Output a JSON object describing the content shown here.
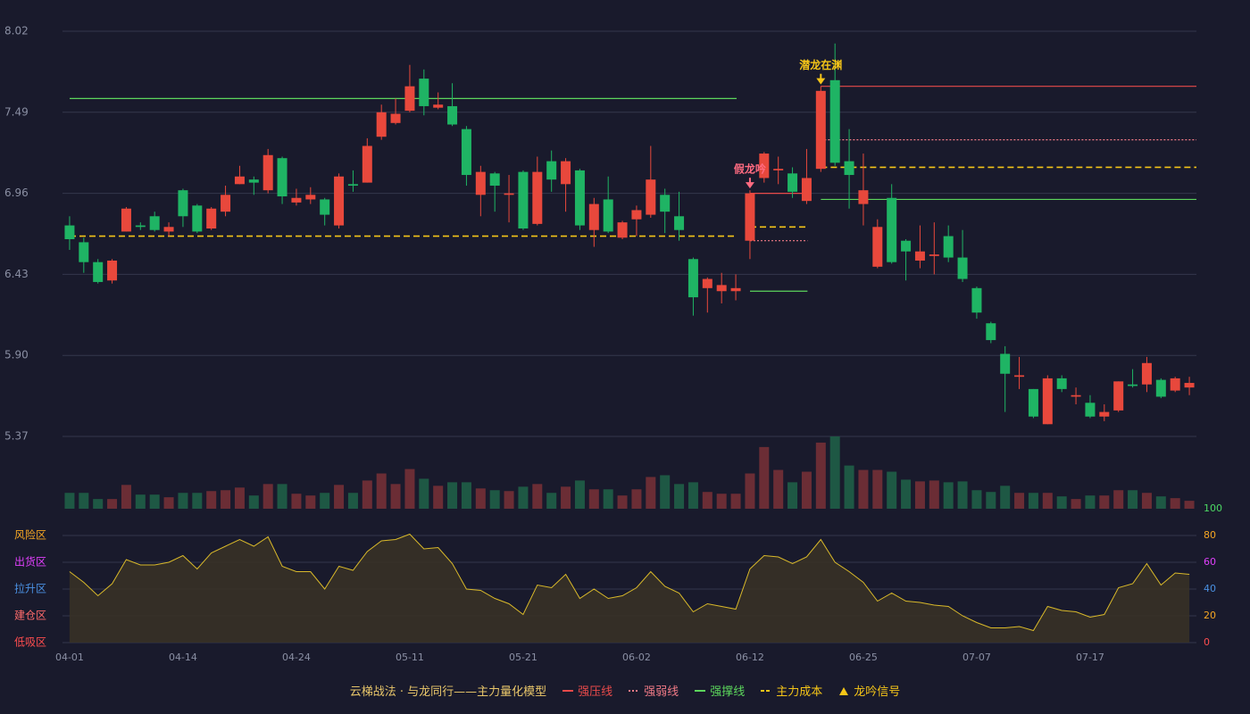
{
  "chart_data": [
    {
      "type": "candlestick",
      "categories": [
        "04-01",
        null,
        null,
        null,
        null,
        null,
        null,
        null,
        "04-14",
        null,
        null,
        null,
        null,
        null,
        null,
        null,
        "04-24",
        null,
        null,
        null,
        null,
        null,
        null,
        null,
        "05-11",
        null,
        null,
        null,
        null,
        null,
        null,
        null,
        "05-21",
        null,
        null,
        null,
        null,
        null,
        null,
        null,
        "06-02",
        null,
        null,
        null,
        null,
        null,
        null,
        null,
        "06-12",
        null,
        null,
        null,
        null,
        null,
        null,
        null,
        "06-25",
        null,
        null,
        null,
        null,
        null,
        null,
        null,
        "07-07",
        null,
        null,
        null,
        null,
        null,
        null,
        null,
        "07-17",
        null,
        null,
        null,
        null,
        null,
        null,
        null
      ],
      "open": [
        6.75,
        6.64,
        6.51,
        6.39,
        6.71,
        6.75,
        6.81,
        6.71,
        6.98,
        6.88,
        6.73,
        6.84,
        7.02,
        7.05,
        6.98,
        7.19,
        6.9,
        6.92,
        6.92,
        6.75,
        7.02,
        7.03,
        7.33,
        7.42,
        7.5,
        7.71,
        7.52,
        7.53,
        7.38,
        6.95,
        7.09,
        6.95,
        7.1,
        6.76,
        7.17,
        7.02,
        7.11,
        6.72,
        6.92,
        6.67,
        6.79,
        6.82,
        6.95,
        6.81,
        6.53,
        6.34,
        6.32,
        6.32,
        6.65,
        7.06,
        7.11,
        7.09,
        6.91,
        7.12,
        7.7,
        7.17,
        6.89,
        6.48,
        6.93,
        6.65,
        6.52,
        6.55,
        6.68,
        6.54,
        6.34,
        6.11,
        5.91,
        5.76,
        5.68,
        5.45,
        5.75,
        5.63,
        5.59,
        5.5,
        5.54,
        5.71,
        5.71,
        5.74,
        5.67,
        5.69
      ],
      "high": [
        6.81,
        6.67,
        6.53,
        6.53,
        6.87,
        6.77,
        6.84,
        6.77,
        6.99,
        6.89,
        6.87,
        7.01,
        7.14,
        7.07,
        7.25,
        7.2,
        6.99,
        7.0,
        6.93,
        7.09,
        7.11,
        7.32,
        7.54,
        7.58,
        7.8,
        7.77,
        7.62,
        7.68,
        7.4,
        7.14,
        7.1,
        7.08,
        7.11,
        7.2,
        7.24,
        7.19,
        7.12,
        6.93,
        7.07,
        6.78,
        6.88,
        7.27,
        6.99,
        6.97,
        6.54,
        6.41,
        6.44,
        6.43,
        6.98,
        7.23,
        7.2,
        7.13,
        7.25,
        7.66,
        7.94,
        7.38,
        7.22,
        6.79,
        7.02,
        6.66,
        6.75,
        6.77,
        6.75,
        6.72,
        6.35,
        6.12,
        5.96,
        5.89,
        5.68,
        5.77,
        5.77,
        5.69,
        5.64,
        5.58,
        5.73,
        5.81,
        5.89,
        5.75,
        5.76,
        5.76
      ],
      "low": [
        6.59,
        6.44,
        6.37,
        6.37,
        6.71,
        6.72,
        6.71,
        6.68,
        6.74,
        6.7,
        6.72,
        6.81,
        7.02,
        6.95,
        6.96,
        6.89,
        6.88,
        6.89,
        6.75,
        6.73,
        6.97,
        7.03,
        7.31,
        7.41,
        7.49,
        7.47,
        7.51,
        7.4,
        7.01,
        6.81,
        6.84,
        6.77,
        6.72,
        6.75,
        6.97,
        6.84,
        6.72,
        6.61,
        6.7,
        6.66,
        6.68,
        6.8,
        6.7,
        6.65,
        6.16,
        6.18,
        6.24,
        6.26,
        6.53,
        7.03,
        7.02,
        6.93,
        6.89,
        7.1,
        7.14,
        6.86,
        6.75,
        6.47,
        6.5,
        6.39,
        6.47,
        6.43,
        6.51,
        6.38,
        6.14,
        5.98,
        5.53,
        5.68,
        5.49,
        5.45,
        5.66,
        5.58,
        5.49,
        5.47,
        5.53,
        5.69,
        5.66,
        5.62,
        5.66,
        5.64
      ],
      "close": [
        6.66,
        6.51,
        6.38,
        6.52,
        6.86,
        6.74,
        6.72,
        6.74,
        6.81,
        6.71,
        6.86,
        6.95,
        7.07,
        7.03,
        7.21,
        6.94,
        6.93,
        6.95,
        6.82,
        7.07,
        7.01,
        7.27,
        7.49,
        7.48,
        7.66,
        7.53,
        7.54,
        7.41,
        7.08,
        7.1,
        7.01,
        6.96,
        6.73,
        7.1,
        7.05,
        7.17,
        6.75,
        6.89,
        6.71,
        6.77,
        6.85,
        7.05,
        6.84,
        6.72,
        6.28,
        6.4,
        6.36,
        6.34,
        6.96,
        7.22,
        7.12,
        6.97,
        7.06,
        7.63,
        7.16,
        7.08,
        6.98,
        6.74,
        6.51,
        6.58,
        6.58,
        6.56,
        6.54,
        6.4,
        6.18,
        6.0,
        5.78,
        5.77,
        5.5,
        5.75,
        5.68,
        5.64,
        5.5,
        5.53,
        5.73,
        5.7,
        5.85,
        5.63,
        5.75,
        5.72
      ],
      "up_color": "#e8483c",
      "down_color": "#1fb464",
      "ylim": [
        5.37,
        8.02
      ],
      "yticks": [
        8.02,
        7.49,
        6.96,
        6.43,
        {
          "value": 5.9,
          "label": "5.90"
        },
        5.37
      ],
      "grid": true,
      "series": [
        {
          "name": "强压线",
          "color": "#e84a4a",
          "style": "solid",
          "values": [
            null,
            null,
            null,
            null,
            null,
            null,
            null,
            null,
            null,
            null,
            null,
            null,
            null,
            null,
            null,
            null,
            null,
            null,
            null,
            null,
            null,
            null,
            null,
            null,
            null,
            null,
            null,
            null,
            null,
            null,
            null,
            null,
            null,
            null,
            null,
            null,
            null,
            null,
            null,
            null,
            null,
            null,
            null,
            null,
            null,
            null,
            null,
            null,
            6.96,
            6.96,
            6.96,
            6.96,
            6.96,
            7.66,
            7.66,
            7.66,
            7.66,
            7.66,
            7.66,
            7.66,
            7.66,
            7.66,
            7.66,
            7.66,
            7.66,
            7.66,
            7.66,
            7.66,
            7.66,
            7.66,
            7.66,
            7.66,
            7.66,
            7.66,
            7.66,
            7.66,
            7.66,
            7.66,
            7.66,
            7.66
          ]
        },
        {
          "name": "强弱线",
          "color": "#f07a86",
          "style": "dotted",
          "values": [
            null,
            null,
            null,
            null,
            null,
            null,
            null,
            null,
            null,
            null,
            null,
            null,
            null,
            null,
            null,
            null,
            null,
            null,
            null,
            null,
            null,
            null,
            null,
            null,
            null,
            null,
            null,
            null,
            null,
            null,
            null,
            null,
            null,
            null,
            null,
            null,
            null,
            null,
            null,
            null,
            null,
            null,
            null,
            null,
            null,
            null,
            null,
            null,
            6.65,
            6.65,
            6.65,
            6.65,
            6.65,
            7.31,
            7.31,
            7.31,
            7.31,
            7.31,
            7.31,
            7.31,
            7.31,
            7.31,
            7.31,
            7.31,
            7.31,
            7.31,
            7.31,
            7.31,
            7.31,
            7.31,
            7.31,
            7.31,
            7.31,
            7.31,
            7.31,
            7.31,
            7.31,
            7.31,
            7.31,
            7.31
          ]
        },
        {
          "name": "强撑线",
          "color": "#5cd65c",
          "style": "solid",
          "values": [
            7.58,
            7.58,
            7.58,
            7.58,
            7.58,
            7.58,
            7.58,
            7.58,
            7.58,
            7.58,
            7.58,
            7.58,
            7.58,
            7.58,
            7.58,
            7.58,
            7.58,
            7.58,
            7.58,
            7.58,
            7.58,
            7.58,
            7.58,
            7.58,
            7.58,
            7.58,
            7.58,
            7.58,
            7.58,
            7.58,
            7.58,
            7.58,
            7.58,
            7.58,
            7.58,
            7.58,
            7.58,
            7.58,
            7.58,
            7.58,
            7.58,
            7.58,
            7.58,
            7.58,
            7.58,
            7.58,
            7.58,
            7.58,
            6.32,
            6.32,
            6.32,
            6.32,
            6.32,
            6.92,
            6.92,
            6.92,
            6.92,
            6.92,
            6.92,
            6.92,
            6.92,
            6.92,
            6.92,
            6.92,
            6.92,
            6.92,
            6.92,
            6.92,
            6.92,
            6.92,
            6.92,
            6.92,
            6.92,
            6.92,
            6.92,
            6.92,
            6.92,
            6.92,
            6.92,
            6.92
          ]
        },
        {
          "name": "主力成本",
          "color": "#f5c518",
          "style": "dashed",
          "values": [
            6.68,
            6.68,
            6.68,
            6.68,
            6.68,
            6.68,
            6.68,
            6.68,
            6.68,
            6.68,
            6.68,
            6.68,
            6.68,
            6.68,
            6.68,
            6.68,
            6.68,
            6.68,
            6.68,
            6.68,
            6.68,
            6.68,
            6.68,
            6.68,
            6.68,
            6.68,
            6.68,
            6.68,
            6.68,
            6.68,
            6.68,
            6.68,
            6.68,
            6.68,
            6.68,
            6.68,
            6.68,
            6.68,
            6.68,
            6.68,
            6.68,
            6.68,
            6.68,
            6.68,
            6.68,
            6.68,
            6.68,
            6.68,
            6.74,
            6.74,
            6.74,
            6.74,
            6.74,
            7.13,
            7.13,
            7.13,
            7.13,
            7.13,
            7.13,
            7.13,
            7.13,
            7.13,
            7.13,
            7.13,
            7.13,
            7.13,
            7.13,
            7.13,
            7.13,
            7.13,
            7.13,
            7.13,
            7.13,
            7.13,
            7.13,
            7.13,
            7.13,
            7.13,
            7.13,
            7.13
          ]
        }
      ],
      "annotations": [
        {
          "text": "假龙吟",
          "index": 48,
          "color": "#ff6b81"
        },
        {
          "text": "潜龙在渊",
          "index": 53,
          "color": "#f5c518"
        }
      ],
      "legend_title": "云梯战法 · 与龙同行——主力量化模型",
      "signal_name": "龙吟信号",
      "signal_color": "#f5c518"
    },
    {
      "type": "volume",
      "values": [
        18,
        18,
        11,
        11,
        27,
        16,
        16,
        13,
        18,
        18,
        20,
        21,
        24,
        15,
        28,
        28,
        17,
        15,
        18,
        27,
        18,
        32,
        40,
        28,
        45,
        34,
        26,
        30,
        30,
        23,
        21,
        20,
        25,
        28,
        18,
        25,
        32,
        22,
        22,
        15,
        22,
        36,
        38,
        28,
        30,
        19,
        17,
        17,
        40,
        70,
        44,
        30,
        42,
        75,
        82,
        49,
        44,
        44,
        42,
        33,
        31,
        32,
        30,
        31,
        21,
        19,
        26,
        18,
        18,
        18,
        14,
        11,
        15,
        15,
        21,
        21,
        18,
        14,
        12,
        9
      ],
      "up_color": "#6b2d35",
      "down_color": "#1e5844",
      "ylim": [
        0,
        82
      ]
    },
    {
      "type": "line",
      "values": [
        53,
        45,
        35,
        44,
        62,
        58,
        58,
        60,
        65,
        55,
        67,
        72,
        77,
        72,
        79,
        57,
        53,
        53,
        40,
        57,
        54,
        68,
        76,
        77,
        81,
        70,
        71,
        59,
        40,
        39,
        33,
        29,
        21,
        43,
        41,
        51,
        33,
        40,
        33,
        35,
        41,
        53,
        42,
        37,
        23,
        29,
        27,
        25,
        55,
        65,
        64,
        59,
        64,
        77,
        60,
        53,
        45,
        31,
        37,
        31,
        30,
        28,
        27,
        20,
        15,
        11,
        11,
        12,
        9,
        27,
        24,
        23,
        19,
        21,
        41,
        44,
        59,
        43,
        52,
        51
      ],
      "color": "#d9b92a",
      "fill": "#3a3326",
      "ylim": [
        0,
        100
      ],
      "yticks": [
        100,
        80,
        60,
        40,
        20,
        0
      ],
      "ytick_colors": [
        "#4cd964",
        "#f5a623",
        "#e040fb",
        "#4a90e2",
        "#f5a623",
        "#ff4d4f"
      ],
      "grid": true,
      "zones": [
        {
          "label": "风险区",
          "value": 80,
          "color": "#f5a623"
        },
        {
          "label": "出货区",
          "value": 60,
          "color": "#e040fb"
        },
        {
          "label": "拉升区",
          "value": 40,
          "color": "#4a90e2"
        },
        {
          "label": "建仓区",
          "value": 20,
          "color": "#ff6b6b"
        },
        {
          "label": "低吸区",
          "value": 0,
          "color": "#ff4d4f"
        }
      ]
    }
  ]
}
